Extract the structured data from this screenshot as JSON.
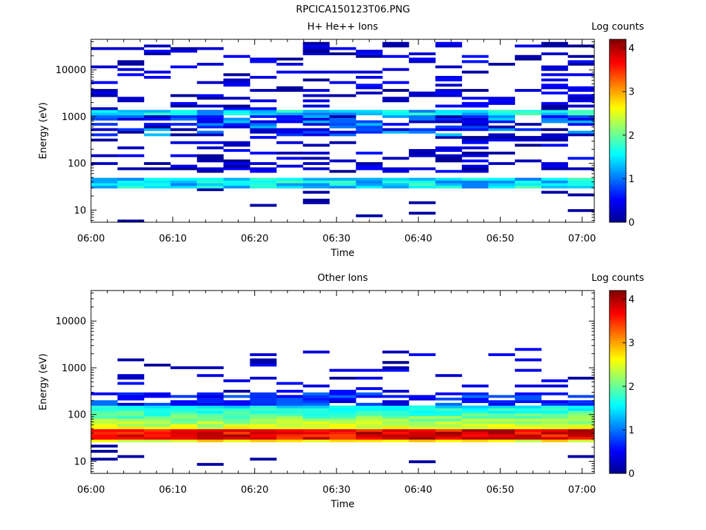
{
  "figure": {
    "file_title": "RPCICA150123T06.PNG"
  },
  "colors": {
    "colormap": [
      "#00008f",
      "#0000ff",
      "#0080ff",
      "#00ffff",
      "#80ff80",
      "#ffff00",
      "#ff8000",
      "#ff0000",
      "#800000"
    ],
    "background": "#ffffff",
    "axis": "#000000"
  },
  "chart_data": [
    {
      "type": "heatmap",
      "title": "H+ He++ Ions",
      "xlabel": "Time",
      "ylabel": "Energy (eV)",
      "xticks": [
        "06:00",
        "06:10",
        "06:20",
        "06:30",
        "06:40",
        "06:50",
        "07:00"
      ],
      "xlim_minutes": [
        0,
        61.5
      ],
      "yscale": "log",
      "yticks": [
        "10",
        "100",
        "1000",
        "10000"
      ],
      "ylim": [
        5.5,
        45000
      ],
      "colorbar": {
        "label": "Log counts",
        "ticks": [
          "0",
          "1",
          "2",
          "3",
          "4"
        ],
        "range": [
          0,
          4.2
        ]
      },
      "time_bins": 19,
      "energy_bins": 70,
      "description": "Sparse scattered counts 0-1 at most energies; a bright band near 1200 eV and a continuous band ~30-45 eV with log counts ~1-2"
    },
    {
      "type": "heatmap",
      "title": "Other Ions",
      "xlabel": "Time",
      "ylabel": "Energy (eV)",
      "xticks": [
        "06:00",
        "06:10",
        "06:20",
        "06:30",
        "06:40",
        "06:50",
        "07:00"
      ],
      "xlim_minutes": [
        0,
        61.5
      ],
      "yscale": "log",
      "yticks": [
        "10",
        "100",
        "1000",
        "10000"
      ],
      "ylim": [
        5.5,
        45000
      ],
      "colorbar": {
        "label": "Log counts",
        "ticks": [
          "0",
          "1",
          "2",
          "3",
          "4"
        ],
        "range": [
          0,
          4.2
        ]
      },
      "time_bins": 19,
      "energy_bins": 70,
      "description": "Intense band ~30-45 eV reaching log counts ~4; counts decreasing from 2 to 0.5 between 50 and 250 eV; sparse counts up to ~2500 eV"
    }
  ]
}
